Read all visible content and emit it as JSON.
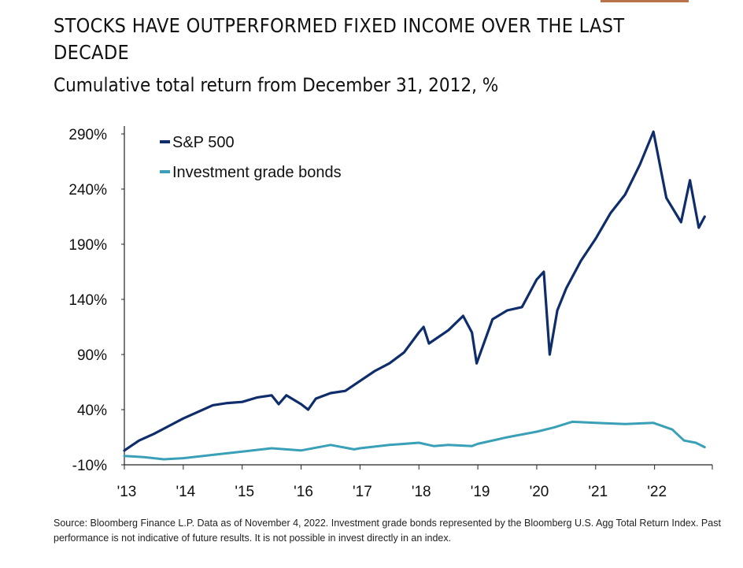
{
  "header": {
    "title": "STOCKS HAVE OUTPERFORMED FIXED INCOME OVER THE LAST DECADE",
    "subtitle": "Cumulative total return from December 31, 2012, %"
  },
  "footer": {
    "source": "Source: Bloomberg Finance L.P. Data as of November 4, 2022. Investment grade bonds represented by the Bloomberg U.S. Agg Total Return Index. Past performance is not indicative of future results. It is not possible in invest directly in an index."
  },
  "colors": {
    "accent": "#b8734a",
    "sp500": "#0f2d6b",
    "bonds": "#3aa0b7"
  },
  "chart_data": {
    "type": "line",
    "title": "STOCKS HAVE OUTPERFORMED FIXED INCOME OVER THE LAST DECADE",
    "subtitle": "Cumulative total return from December 31, 2012, %",
    "xlabel": "",
    "ylabel": "",
    "xlim": [
      2013.0,
      2022.98
    ],
    "ylim": [
      -10,
      300
    ],
    "y_ticks": [
      -10,
      40,
      90,
      140,
      190,
      240,
      290
    ],
    "y_tick_labels": [
      "-10%",
      "40%",
      "90%",
      "140%",
      "190%",
      "240%",
      "290%"
    ],
    "x_ticks": [
      2013,
      2014,
      2015,
      2016,
      2017,
      2018,
      2019,
      2020,
      2021,
      2022
    ],
    "x_tick_labels": [
      "'13",
      "'14",
      "'15",
      "'16",
      "'17",
      "'18",
      "'19",
      "'20",
      "'21",
      "'22"
    ],
    "grid": false,
    "legend_position": "top-left",
    "series": [
      {
        "name": "S&P 500",
        "x": [
          2013.0,
          2013.25,
          2013.5,
          2013.75,
          2014.0,
          2014.25,
          2014.5,
          2014.75,
          2015.0,
          2015.25,
          2015.5,
          2015.62,
          2015.75,
          2016.0,
          2016.12,
          2016.25,
          2016.5,
          2016.75,
          2017.0,
          2017.25,
          2017.5,
          2017.75,
          2018.0,
          2018.08,
          2018.17,
          2018.5,
          2018.75,
          2018.9,
          2018.98,
          2019.25,
          2019.5,
          2019.75,
          2020.0,
          2020.12,
          2020.22,
          2020.35,
          2020.5,
          2020.75,
          2021.0,
          2021.25,
          2021.5,
          2021.75,
          2021.98,
          2022.2,
          2022.45,
          2022.6,
          2022.75,
          2022.85
        ],
        "y": [
          3,
          12,
          18,
          25,
          32,
          38,
          44,
          46,
          47,
          51,
          53,
          45,
          53,
          45,
          40,
          50,
          55,
          57,
          66,
          75,
          82,
          92,
          110,
          115,
          100,
          112,
          125,
          110,
          82,
          122,
          130,
          133,
          158,
          165,
          90,
          130,
          150,
          175,
          195,
          218,
          235,
          262,
          292,
          232,
          210,
          248,
          205,
          215
        ]
      },
      {
        "name": "Investment grade bonds",
        "x": [
          2013.0,
          2013.33,
          2013.67,
          2014.0,
          2014.5,
          2015.0,
          2015.5,
          2016.0,
          2016.5,
          2016.9,
          2017.0,
          2017.5,
          2018.0,
          2018.25,
          2018.5,
          2018.9,
          2019.0,
          2019.5,
          2020.0,
          2020.3,
          2020.6,
          2021.0,
          2021.5,
          2021.98,
          2022.3,
          2022.5,
          2022.7,
          2022.85
        ],
        "y": [
          -2,
          -3,
          -5,
          -4,
          -1,
          2,
          5,
          3,
          8,
          4,
          5,
          8,
          10,
          7,
          8,
          7,
          9,
          15,
          20,
          24,
          29,
          28,
          27,
          28,
          22,
          12,
          10,
          6
        ]
      }
    ]
  }
}
